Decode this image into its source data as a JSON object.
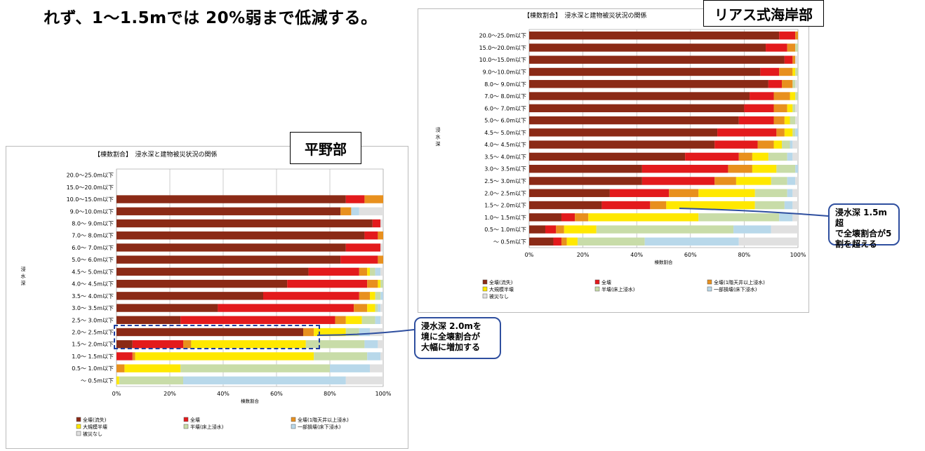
{
  "header_text": "れず、1〜1.5mでは 20%弱まで低減する。",
  "panel_labels": {
    "plain": "平野部",
    "rias": "リアス式海岸部"
  },
  "callouts": {
    "plain": [
      "浸水深 2.0mを",
      "境に全壊割合が",
      "大幅に増加する"
    ],
    "rias": [
      "浸水深 1.5m 超",
      "で全壊割合が5",
      "割を超える"
    ]
  },
  "chart_data": [
    {
      "type": "bar",
      "orientation": "horizontal-stacked-100",
      "title": "【棟数割合】　浸水深と建物被災状況の関係",
      "xlabel": "棟数割合",
      "ylabel": "浸水深",
      "xlim": [
        0,
        100
      ],
      "xticks": [
        "0%",
        "20%",
        "40%",
        "60%",
        "80%",
        "100%"
      ],
      "grid": true,
      "legend_position": "bottom",
      "categories": [
        "20.0〜25.0m以下",
        "15.0〜20.0m以下",
        "10.0〜15.0m以下",
        "9.0〜10.0m以下",
        "8.0〜 9.0m以下",
        "7.0〜 8.0m以下",
        "6.0〜 7.0m以下",
        "5.0〜 6.0m以下",
        "4.5〜 5.0m以下",
        "4.0〜 4.5m以下",
        "3.5〜 4.0m以下",
        "3.0〜 3.5m以下",
        "2.5〜 3.0m以下",
        "2.0〜 2.5m以下",
        "1.5〜 2.0m以下",
        "1.0〜 1.5m以下",
        "0.5〜 1.0m以下",
        "〜 0.5m以下"
      ],
      "series": [
        {
          "name": "全壊(流失)",
          "color": "#8b2a16",
          "values": [
            0,
            0,
            86,
            84,
            96,
            93,
            86,
            84,
            72,
            64,
            55,
            38,
            24,
            70,
            6,
            0,
            0,
            0
          ]
        },
        {
          "name": "全壊",
          "color": "#e31a1c",
          "values": [
            0,
            0,
            7,
            0,
            3,
            5,
            13,
            14,
            19,
            30,
            36,
            51,
            58,
            0,
            19,
            6,
            0,
            0
          ]
        },
        {
          "name": "全壊(1階天井以上浸水)",
          "color": "#e8901e",
          "values": [
            0,
            0,
            7,
            4,
            0,
            2,
            0,
            2,
            3,
            4,
            4,
            5,
            4,
            4,
            3,
            1,
            3,
            0
          ]
        },
        {
          "name": "大規模半壊",
          "color": "#ffe800",
          "values": [
            0,
            0,
            0,
            0,
            0,
            0,
            0,
            0,
            1,
            1,
            2,
            3,
            6,
            12,
            43,
            67,
            21,
            1
          ]
        },
        {
          "name": "半壊(床上浸水)",
          "color": "#c8dca8",
          "values": [
            0,
            0,
            0,
            0,
            0,
            0,
            0,
            0,
            2,
            1,
            2,
            1,
            5,
            5,
            22,
            20,
            56,
            24
          ]
        },
        {
          "name": "一部損壊(床下浸水)",
          "color": "#b8d8ea",
          "values": [
            0,
            0,
            0,
            3,
            0,
            0,
            0,
            0,
            2,
            0,
            1,
            1,
            2,
            4,
            5,
            5,
            15,
            61
          ]
        },
        {
          "name": "被災なし",
          "color": "#e0e0e0",
          "values": [
            0,
            0,
            0,
            9,
            1,
            0,
            1,
            0,
            1,
            0,
            0,
            1,
            1,
            5,
            2,
            1,
            5,
            14
          ]
        }
      ]
    },
    {
      "type": "bar",
      "orientation": "horizontal-stacked-100",
      "title": "【棟数割合】　浸水深と建物被災状況の関係",
      "xlabel": "棟数割合",
      "ylabel": "浸水深",
      "xlim": [
        0,
        100
      ],
      "xticks": [
        "0%",
        "20%",
        "40%",
        "60%",
        "80%",
        "100%"
      ],
      "grid": true,
      "legend_position": "bottom",
      "categories": [
        "20.0〜25.0m以下",
        "15.0〜20.0m以下",
        "10.0〜15.0m以下",
        "9.0〜10.0m以下",
        "8.0〜 9.0m以下",
        "7.0〜 8.0m以下",
        "6.0〜 7.0m以下",
        "5.0〜 6.0m以下",
        "4.5〜 5.0m以下",
        "4.0〜 4.5m以下",
        "3.5〜 4.0m以下",
        "3.0〜 3.5m以下",
        "2.5〜 3.0m以下",
        "2.0〜 2.5m以下",
        "1.5〜 2.0m以下",
        "1.0〜 1.5m以下",
        "0.5〜 1.0m以下",
        "〜 0.5m以下"
      ],
      "series": [
        {
          "name": "全壊(流失)",
          "color": "#8b2a16",
          "values": [
            93,
            88,
            95,
            86,
            89,
            82,
            80,
            78,
            70,
            69,
            58,
            42,
            42,
            30,
            27,
            12,
            6,
            9
          ]
        },
        {
          "name": "全壊",
          "color": "#e31a1c",
          "values": [
            6,
            8,
            3,
            7,
            5,
            9,
            11,
            13,
            22,
            16,
            20,
            32,
            27,
            22,
            18,
            5,
            4,
            3
          ]
        },
        {
          "name": "全壊(1階天井以上浸水)",
          "color": "#e8901e",
          "values": [
            1,
            3,
            1,
            5,
            4,
            6,
            5,
            4,
            3,
            6,
            5,
            9,
            8,
            11,
            6,
            5,
            3,
            2
          ]
        },
        {
          "name": "大規模半壊",
          "color": "#ffe800",
          "values": [
            0,
            0,
            0,
            1,
            0,
            2,
            2,
            2,
            3,
            3,
            6,
            9,
            13,
            21,
            33,
            41,
            12,
            4
          ]
        },
        {
          "name": "半壊(床上浸水)",
          "color": "#c8dca8",
          "values": [
            0,
            1,
            0,
            1,
            1,
            1,
            1,
            2,
            1,
            3,
            7,
            7,
            6,
            12,
            11,
            30,
            51,
            25
          ]
        },
        {
          "name": "一部損壊(床下浸水)",
          "color": "#b8d8ea",
          "values": [
            0,
            0,
            0,
            0,
            0,
            0,
            0,
            0,
            1,
            1,
            2,
            1,
            3,
            2,
            3,
            5,
            14,
            35
          ]
        },
        {
          "name": "被災なし",
          "color": "#e0e0e0",
          "values": [
            0,
            0,
            1,
            0,
            1,
            0,
            1,
            1,
            0,
            2,
            2,
            0,
            1,
            2,
            2,
            2,
            10,
            22
          ]
        }
      ]
    }
  ]
}
